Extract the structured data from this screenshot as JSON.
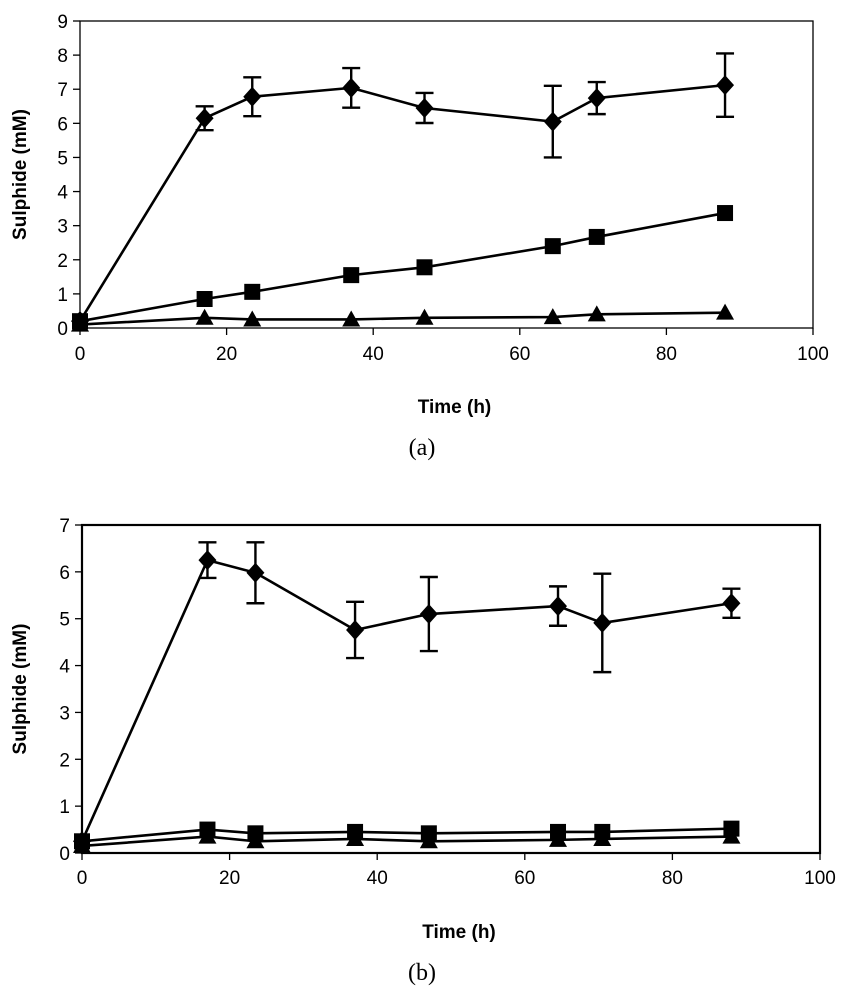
{
  "chart_data": [
    {
      "type": "line",
      "panel_label": "(a)",
      "title": "",
      "xlabel": "Time (h)",
      "ylabel": "Sulphide (mM)",
      "xlim": [
        0,
        100
      ],
      "ylim": [
        0,
        9
      ],
      "xticks": [
        0,
        20,
        40,
        60,
        80,
        100
      ],
      "yticks": [
        0,
        1,
        2,
        3,
        4,
        5,
        6,
        7,
        8,
        9
      ],
      "grid": false,
      "legend": "none",
      "x": [
        0,
        17,
        23.5,
        37,
        47,
        64.5,
        70.5,
        88
      ],
      "series": [
        {
          "name": "diamond series",
          "marker": "diamond",
          "values": [
            0.2,
            6.15,
            6.78,
            7.04,
            6.45,
            6.05,
            6.74,
            7.12
          ],
          "error": [
            0,
            0.35,
            0.57,
            0.58,
            0.44,
            1.05,
            0.47,
            0.93
          ]
        },
        {
          "name": "square series",
          "marker": "square",
          "values": [
            0.2,
            0.85,
            1.06,
            1.55,
            1.78,
            2.4,
            2.67,
            3.37
          ],
          "error": null
        },
        {
          "name": "triangle series",
          "marker": "triangle",
          "values": [
            0.1,
            0.3,
            0.25,
            0.25,
            0.3,
            0.32,
            0.4,
            0.45
          ],
          "error": null
        }
      ]
    },
    {
      "type": "line",
      "panel_label": "(b)",
      "title": "",
      "xlabel": "Time (h)",
      "ylabel": "Sulphide (mM)",
      "xlim": [
        0,
        100
      ],
      "ylim": [
        0,
        7
      ],
      "xticks": [
        0,
        20,
        40,
        60,
        80,
        100
      ],
      "yticks": [
        0,
        1,
        2,
        3,
        4,
        5,
        6,
        7
      ],
      "grid": false,
      "legend": "none",
      "x": [
        0,
        17,
        23.5,
        37,
        47,
        64.5,
        70.5,
        88
      ],
      "series": [
        {
          "name": "diamond series",
          "marker": "diamond",
          "values": [
            0.25,
            6.25,
            5.98,
            4.76,
            5.1,
            5.27,
            4.91,
            5.33
          ],
          "error": [
            0,
            0.38,
            0.65,
            0.6,
            0.79,
            0.42,
            1.05,
            0.31
          ]
        },
        {
          "name": "square series",
          "marker": "square",
          "values": [
            0.25,
            0.5,
            0.42,
            0.45,
            0.42,
            0.45,
            0.45,
            0.52
          ],
          "error": null
        },
        {
          "name": "triangle series",
          "marker": "triangle",
          "values": [
            0.15,
            0.35,
            0.25,
            0.3,
            0.25,
            0.28,
            0.3,
            0.35
          ],
          "error": null
        }
      ]
    }
  ]
}
